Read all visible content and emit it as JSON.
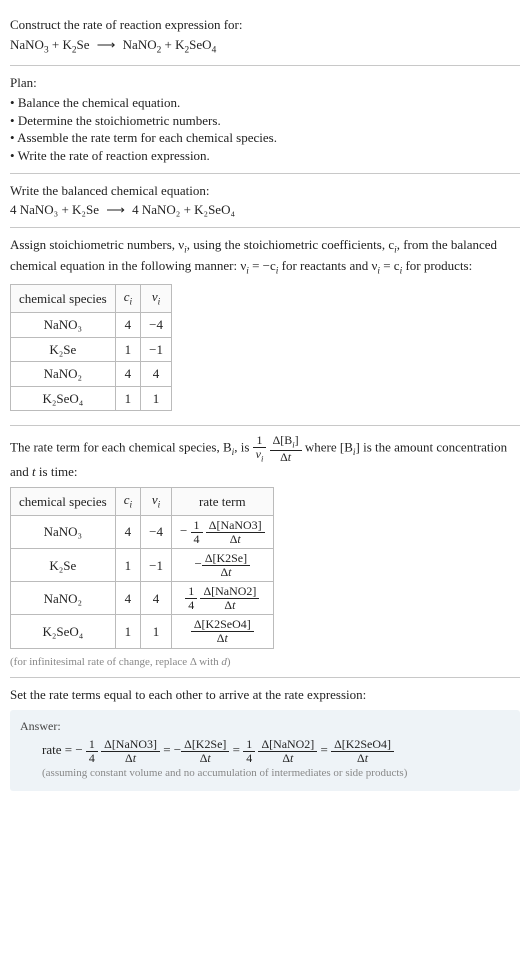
{
  "prompt": {
    "line1": "Construct the rate of reaction expression for:",
    "reactants": [
      "NaNO",
      "3",
      " + K",
      "2",
      "Se"
    ],
    "products": [
      "NaNO",
      "2",
      " + K",
      "2",
      "SeO",
      "4"
    ]
  },
  "plan": {
    "heading": "Plan:",
    "items": [
      "Balance the chemical equation.",
      "Determine the stoichiometric numbers.",
      "Assemble the rate term for each chemical species.",
      "Write the rate of reaction expression."
    ]
  },
  "balanced": {
    "heading": "Write the balanced chemical equation:",
    "lhs": "4 NaNO₃ + K₂Se",
    "rhs": "4 NaNO₂ + K₂SeO₄"
  },
  "stoich": {
    "para_a": "Assign stoichiometric numbers, ν",
    "para_b": ", using the stoichiometric coefficients, c",
    "para_c": ", from the balanced chemical equation in the following manner: ν",
    "para_d": " = −c",
    "para_e": " for reactants and ν",
    "para_f": " = c",
    "para_g": " for products:",
    "table": {
      "headers": [
        "chemical species",
        "cᵢ",
        "νᵢ"
      ],
      "rows": [
        [
          "NaNO₃",
          "4",
          "−4"
        ],
        [
          "K₂Se",
          "1",
          "−1"
        ],
        [
          "NaNO₂",
          "4",
          "4"
        ],
        [
          "K₂SeO₄",
          "1",
          "1"
        ]
      ]
    }
  },
  "rateterm": {
    "para1_a": "The rate term for each chemical species, B",
    "para1_b": ", is ",
    "para1_c": " where [B",
    "para1_d": "] is the amount concentration and ",
    "para1_e": " is time:",
    "frac1": {
      "num_l": "1",
      "den_l": "νᵢ",
      "num_r": "Δ[Bᵢ]",
      "den_r": "Δt"
    },
    "table": {
      "headers": [
        "chemical species",
        "cᵢ",
        "νᵢ",
        "rate term"
      ],
      "rows": [
        {
          "sp": "NaNO₃",
          "c": "4",
          "v": "−4",
          "sign": "−",
          "coef_num": "1",
          "coef_den": "4",
          "dnum": "Δ[NaNO3]",
          "dden": "Δt"
        },
        {
          "sp": "K₂Se",
          "c": "1",
          "v": "−1",
          "sign": "−",
          "coef_num": "",
          "coef_den": "",
          "dnum": "Δ[K2Se]",
          "dden": "Δt"
        },
        {
          "sp": "NaNO₂",
          "c": "4",
          "v": "4",
          "sign": "",
          "coef_num": "1",
          "coef_den": "4",
          "dnum": "Δ[NaNO2]",
          "dden": "Δt"
        },
        {
          "sp": "K₂SeO₄",
          "c": "1",
          "v": "1",
          "sign": "",
          "coef_num": "",
          "coef_den": "",
          "dnum": "Δ[K2SeO4]",
          "dden": "Δt"
        }
      ]
    },
    "note": "(for infinitesimal rate of change, replace Δ with d)"
  },
  "final": {
    "heading": "Set the rate terms equal to each other to arrive at the rate expression:",
    "answer_label": "Answer:",
    "rate_label": "rate = ",
    "terms": [
      {
        "sign": "−",
        "coef_num": "1",
        "coef_den": "4",
        "dnum": "Δ[NaNO3]",
        "dden": "Δt"
      },
      {
        "sign": "−",
        "coef_num": "",
        "coef_den": "",
        "dnum": "Δ[K2Se]",
        "dden": "Δt"
      },
      {
        "sign": "",
        "coef_num": "1",
        "coef_den": "4",
        "dnum": "Δ[NaNO2]",
        "dden": "Δt"
      },
      {
        "sign": "",
        "coef_num": "",
        "coef_den": "",
        "dnum": "Δ[K2SeO4]",
        "dden": "Δt"
      }
    ],
    "eq_sep": " = ",
    "note": "(assuming constant volume and no accumulation of intermediates or side products)"
  },
  "colors": {
    "border": "#c8c8c8",
    "answer_bg": "#eef3f7",
    "note": "#888888"
  }
}
